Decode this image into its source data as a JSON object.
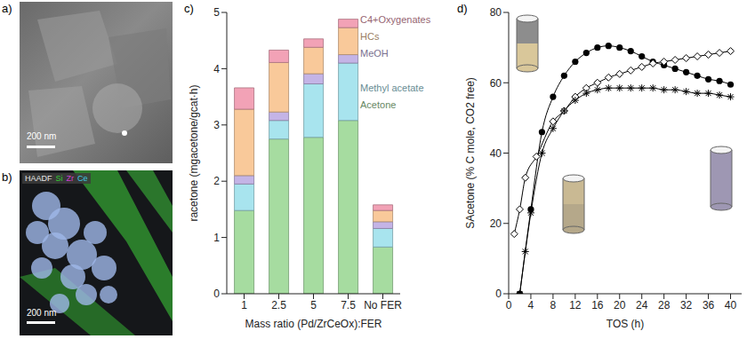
{
  "images": [
    {
      "panel": "a)",
      "scale_bar": "200 nm"
    },
    {
      "panel": "b)",
      "scale_bar": "200 nm",
      "channels": [
        {
          "name": "HAADF",
          "color": "#e8e8e8"
        },
        {
          "name": "Si",
          "color": "#33cc33"
        },
        {
          "name": "Zr",
          "color": "#d040d0"
        },
        {
          "name": "Ce",
          "color": "#40c8e8"
        }
      ]
    }
  ],
  "chart_data": [
    {
      "panel": "c)",
      "type": "bar",
      "stacked": true,
      "legend": "right",
      "categories": [
        "1",
        "2.5",
        "5",
        "7.5",
        "No FER"
      ],
      "x_label": "Mass ratio (Pd/ZrCeOx):FER",
      "y_label": "racetone (mgacetone/gcat·h)",
      "ylim": [
        0,
        5
      ],
      "yticks": [
        0,
        1,
        2,
        3,
        4,
        5
      ],
      "series": [
        {
          "name": "Acetone",
          "color": "#a6dca0",
          "values": [
            1.48,
            2.75,
            2.78,
            3.08,
            0.83
          ]
        },
        {
          "name": "Methyl acetate",
          "color": "#a8e4ee",
          "values": [
            0.47,
            0.33,
            0.95,
            1.02,
            0.33
          ]
        },
        {
          "name": "MeOH",
          "color": "#c4b4e6",
          "values": [
            0.15,
            0.15,
            0.18,
            0.15,
            0.12
          ]
        },
        {
          "name": "HCs",
          "color": "#f9c99a",
          "values": [
            1.18,
            0.88,
            0.47,
            0.48,
            0.2
          ]
        },
        {
          "name": "C4+Oxygenates",
          "color": "#f2a2b6",
          "values": [
            0.38,
            0.22,
            0.15,
            0.15,
            0.1
          ]
        }
      ]
    },
    {
      "panel": "d)",
      "type": "line",
      "x_label": "TOS (h)",
      "y_label": "SAcetone (% C mole, CO2 free)",
      "xlim": [
        0,
        42
      ],
      "xticks": [
        0,
        4,
        8,
        12,
        16,
        20,
        24,
        28,
        32,
        36,
        40
      ],
      "ylim": [
        0,
        80
      ],
      "yticks": [
        0,
        20,
        40,
        60,
        80
      ],
      "series": [
        {
          "marker": "circle",
          "color": "#000000",
          "x": [
            2,
            4,
            6,
            8,
            10,
            12,
            14,
            16,
            18,
            20,
            22,
            24,
            26,
            28,
            30,
            32,
            34,
            36,
            38,
            40
          ],
          "values": [
            0,
            24,
            46,
            56,
            62,
            66,
            68.5,
            70,
            70.5,
            70,
            69,
            67.5,
            66,
            65,
            64,
            63,
            62,
            61,
            60.5,
            59.5
          ]
        },
        {
          "marker": "open_diamond",
          "color": "#000000",
          "x": [
            1,
            2,
            3,
            5,
            8,
            10,
            12,
            14,
            16,
            18,
            20,
            22,
            24,
            26,
            28,
            30,
            32,
            34,
            36,
            38,
            40
          ],
          "values": [
            17,
            24,
            33,
            39,
            49,
            52,
            56,
            58.5,
            60,
            61.5,
            62.5,
            63.5,
            64.5,
            65.5,
            66,
            66.5,
            67,
            67.5,
            68,
            68.5,
            69
          ]
        },
        {
          "marker": "asterisk",
          "color": "#000000",
          "x": [
            2,
            3,
            4,
            6,
            8,
            10,
            12,
            14,
            16,
            18,
            20,
            22,
            24,
            26,
            28,
            30,
            32,
            34,
            36,
            38,
            40
          ],
          "values": [
            0,
            12,
            23,
            40,
            47,
            52,
            55,
            57,
            58,
            58.5,
            58.5,
            58.5,
            58.5,
            58.5,
            58,
            58,
            57.5,
            57,
            57,
            56.5,
            56
          ]
        }
      ]
    }
  ]
}
